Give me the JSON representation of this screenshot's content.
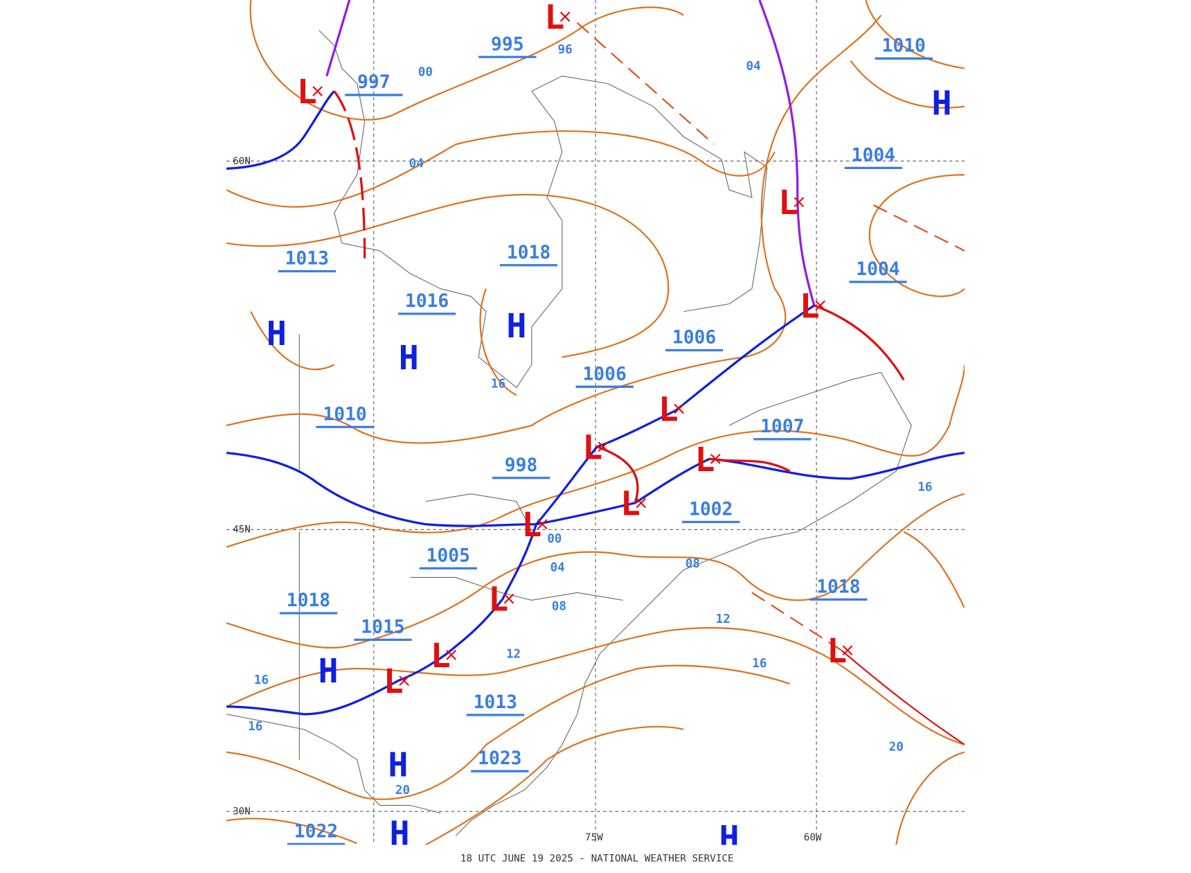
{
  "isobar_labels": [
    "995",
    "997",
    "1010",
    "1004",
    "1013",
    "1018",
    "1004",
    "1016",
    "1006",
    "1006",
    "1010",
    "1007",
    "998",
    "1002",
    "1005",
    "1018",
    "1018",
    "1015",
    "1013",
    "1023",
    "1022"
  ],
  "minor_isobar_labels": [
    "96",
    "00",
    "04",
    "04",
    "16",
    "00",
    "04",
    "08",
    "08",
    "12",
    "12",
    "16",
    "16",
    "16",
    "16",
    "20",
    "20"
  ],
  "highs": [
    "H",
    "H",
    "H",
    "H",
    "H",
    "H",
    "H",
    "H"
  ],
  "lows": [
    "L",
    "L",
    "L",
    "L",
    "L",
    "L",
    "L",
    "L",
    "L",
    "L",
    "L",
    "L",
    "L"
  ],
  "grid_labels": {
    "lat": [
      "60N",
      "45N",
      "30N"
    ],
    "lon": [
      "75W",
      "60W"
    ]
  },
  "footer": "18 UTC JUNE 19 2025 - NATIONAL WEATHER SERVICE"
}
